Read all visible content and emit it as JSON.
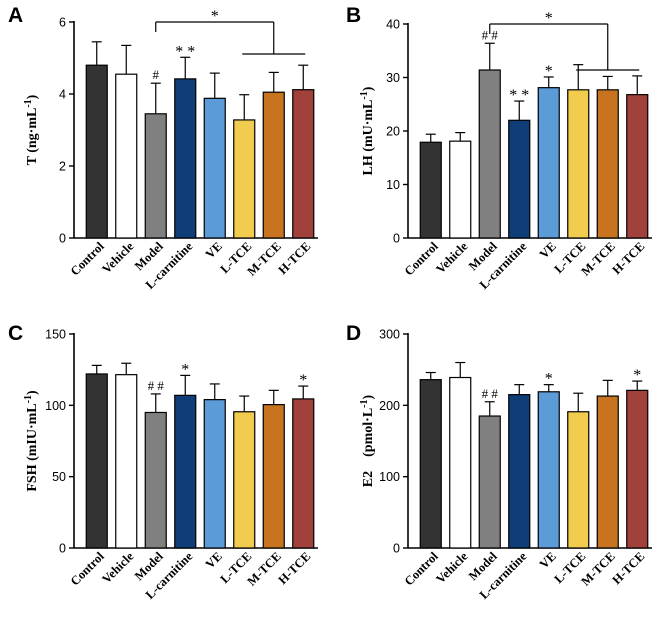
{
  "colors": {
    "Control": "#333333",
    "Vehicle": "#ffffff",
    "Model": "#808080",
    "L-carnitine": "#0f3d78",
    "VE": "#5a9bd8",
    "L-TCE": "#f2cc4f",
    "M-TCE": "#c8731f",
    "H-TCE": "#a0413c"
  },
  "chart_data": [
    {
      "type": "bar",
      "panel": "A",
      "ylabel_main": "T (ng·mL",
      "ylabel_sup": "-1",
      "ylabel_close": ")",
      "ylim": [
        0,
        6
      ],
      "yticks": [
        "0",
        "2",
        "4",
        "6"
      ],
      "categories": [
        "Control",
        "Vehicle",
        "Model",
        "L-carnitine",
        "VE",
        "L-TCE",
        "M-TCE",
        "H-TCE"
      ],
      "values": [
        4.8,
        4.55,
        3.45,
        4.42,
        3.88,
        3.28,
        4.05,
        4.12
      ],
      "errors": [
        0.65,
        0.8,
        0.85,
        0.6,
        0.7,
        0.7,
        0.55,
        0.68
      ],
      "annotations": [
        "",
        "",
        "#",
        "* *",
        "",
        "",
        "",
        ""
      ],
      "bracket_label": "*"
    },
    {
      "type": "bar",
      "panel": "B",
      "ylabel_main": "LH (mU·mL",
      "ylabel_sup": "-1",
      "ylabel_close": ")",
      "ylim": [
        0,
        40
      ],
      "yticks": [
        "0",
        "10",
        "20",
        "30",
        "40"
      ],
      "categories": [
        "Control",
        "Vehicle",
        "Model",
        "L-carnitine",
        "VE",
        "L-TCE",
        "M-TCE",
        "H-TCE"
      ],
      "values": [
        17.9,
        18.1,
        31.4,
        22.0,
        28.1,
        27.7,
        27.7,
        26.8
      ],
      "errors": [
        1.5,
        1.6,
        5.0,
        3.6,
        2.0,
        4.7,
        2.5,
        3.5
      ],
      "annotations": [
        "",
        "",
        "# #",
        "* *",
        "*",
        "",
        "",
        ""
      ],
      "bracket_label": "*"
    },
    {
      "type": "bar",
      "panel": "C",
      "ylabel_main": "FSH (mIU·mL",
      "ylabel_sup": "-1",
      "ylabel_close": ")",
      "ylim": [
        0,
        150
      ],
      "yticks": [
        "0",
        "50",
        "100",
        "150"
      ],
      "categories": [
        "Control",
        "Vehicle",
        "Model",
        "L-carnitine",
        "VE",
        "L-TCE",
        "M-TCE",
        "H-TCE"
      ],
      "values": [
        122,
        121.5,
        95,
        107,
        104,
        95.5,
        100.5,
        104.5
      ],
      "errors": [
        6,
        8,
        13,
        14,
        11,
        11,
        10,
        9
      ],
      "annotations": [
        "",
        "",
        "# #",
        "*",
        "",
        "",
        "",
        "*"
      ],
      "bracket_label": ""
    },
    {
      "type": "bar",
      "panel": "D",
      "ylabel_main": "E2　(pmol·L",
      "ylabel_sup": "-1",
      "ylabel_close": ")",
      "ylim": [
        0,
        300
      ],
      "yticks": [
        "0",
        "100",
        "200",
        "300"
      ],
      "categories": [
        "Control",
        "Vehicle",
        "Model",
        "L-carnitine",
        "VE",
        "L-TCE",
        "M-TCE",
        "H-TCE"
      ],
      "values": [
        236,
        239,
        185,
        215,
        219,
        191,
        213,
        221
      ],
      "errors": [
        10,
        21,
        20,
        14,
        10,
        26,
        22,
        13
      ],
      "annotations": [
        "",
        "",
        "# #",
        "",
        "*",
        "",
        "",
        "*"
      ],
      "bracket_label": ""
    }
  ]
}
